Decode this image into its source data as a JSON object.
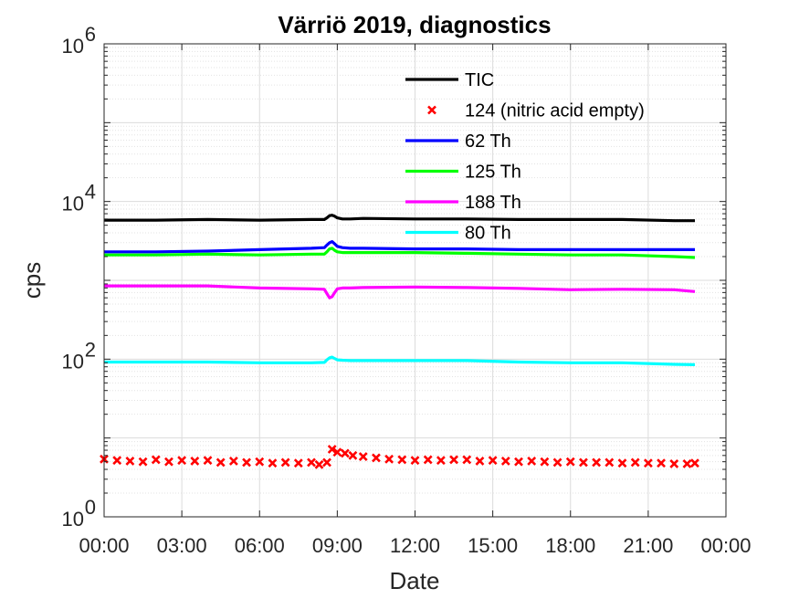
{
  "chart_data": {
    "type": "line",
    "title": "Värriö 2019, diagnostics",
    "xlabel": "Date",
    "ylabel": "cps",
    "yscale": "log",
    "ylim": [
      1,
      1000000
    ],
    "xlim": [
      0,
      24
    ],
    "grid": true,
    "legend_position": "top-right",
    "x_ticks": [
      {
        "value": 0,
        "label": "00:00"
      },
      {
        "value": 3,
        "label": "03:00"
      },
      {
        "value": 6,
        "label": "06:00"
      },
      {
        "value": 9,
        "label": "09:00"
      },
      {
        "value": 12,
        "label": "12:00"
      },
      {
        "value": 15,
        "label": "15:00"
      },
      {
        "value": 18,
        "label": "18:00"
      },
      {
        "value": 21,
        "label": "21:00"
      },
      {
        "value": 24,
        "label": "00:00"
      }
    ],
    "y_ticks": [
      {
        "value": 1,
        "base": "10",
        "exp": "0"
      },
      {
        "value": 100,
        "base": "10",
        "exp": "2"
      },
      {
        "value": 10000,
        "base": "10",
        "exp": "4"
      },
      {
        "value": 1000000,
        "base": "10",
        "exp": "6"
      }
    ],
    "series": [
      {
        "name": "TIC",
        "color": "#000000",
        "style": "line",
        "x": [
          0,
          2,
          4,
          6,
          8,
          8.5,
          8.6,
          8.7,
          8.8,
          8.9,
          9.0,
          9.2,
          9.5,
          10,
          12,
          14,
          16,
          18,
          20,
          22,
          22.8
        ],
        "y": [
          5800,
          5800,
          5900,
          5800,
          5900,
          5900,
          6200,
          6600,
          6700,
          6500,
          6200,
          6000,
          6000,
          6100,
          6000,
          6000,
          5900,
          5900,
          5900,
          5700,
          5700
        ]
      },
      {
        "name": "124 (nitric acid empty)",
        "color": "#ff0000",
        "style": "marker",
        "x": [
          0,
          0.5,
          1,
          1.5,
          2,
          2.5,
          3,
          3.5,
          4,
          4.5,
          5,
          5.5,
          6,
          6.5,
          7,
          7.5,
          8,
          8.3,
          8.6,
          8.8,
          9,
          9.3,
          9.6,
          10,
          10.5,
          11,
          11.5,
          12,
          12.5,
          13,
          13.5,
          14,
          14.5,
          15,
          15.5,
          16,
          16.5,
          17,
          17.5,
          18,
          18.5,
          19,
          19.5,
          20,
          20.5,
          21,
          21.5,
          22,
          22.5,
          22.8
        ],
        "y": [
          5.4,
          5.2,
          5.1,
          5.0,
          5.3,
          5.0,
          5.2,
          5.1,
          5.2,
          4.9,
          5.1,
          4.9,
          5.0,
          4.8,
          4.9,
          4.8,
          4.9,
          4.6,
          4.9,
          7.2,
          6.6,
          6.4,
          6.0,
          5.8,
          5.6,
          5.4,
          5.3,
          5.2,
          5.3,
          5.2,
          5.3,
          5.3,
          5.1,
          5.2,
          5.1,
          5.0,
          5.1,
          5.0,
          4.9,
          5.0,
          4.9,
          4.9,
          4.9,
          4.8,
          4.9,
          4.8,
          4.8,
          4.7,
          4.7,
          4.8
        ]
      },
      {
        "name": "62 Th",
        "color": "#0000ff",
        "style": "line",
        "x": [
          0,
          2,
          4,
          6,
          8,
          8.5,
          8.6,
          8.7,
          8.8,
          8.9,
          9.0,
          9.2,
          9.5,
          10,
          12,
          14,
          16,
          18,
          20,
          22,
          22.8
        ],
        "y": [
          2300,
          2300,
          2350,
          2450,
          2550,
          2600,
          2800,
          3000,
          3100,
          2900,
          2700,
          2600,
          2550,
          2550,
          2500,
          2500,
          2450,
          2450,
          2450,
          2450,
          2450
        ]
      },
      {
        "name": "125 Th",
        "color": "#00ff00",
        "style": "line",
        "x": [
          0,
          2,
          4,
          6,
          8,
          8.5,
          8.6,
          8.7,
          8.8,
          8.9,
          9.0,
          9.2,
          9.5,
          10,
          12,
          14,
          16,
          18,
          20,
          22,
          22.8
        ],
        "y": [
          2100,
          2100,
          2150,
          2100,
          2150,
          2150,
          2300,
          2500,
          2550,
          2400,
          2300,
          2250,
          2250,
          2250,
          2250,
          2200,
          2150,
          2100,
          2100,
          2000,
          1950
        ]
      },
      {
        "name": "188 Th",
        "color": "#ff00ff",
        "style": "line",
        "x": [
          0,
          2,
          4,
          6,
          8,
          8.5,
          8.6,
          8.7,
          8.8,
          8.9,
          9.0,
          9.2,
          9.5,
          10,
          12,
          14,
          16,
          18,
          20,
          22,
          22.8
        ],
        "y": [
          850,
          850,
          850,
          800,
          780,
          770,
          680,
          600,
          620,
          700,
          780,
          800,
          800,
          810,
          820,
          810,
          790,
          760,
          770,
          760,
          720
        ]
      },
      {
        "name": "80 Th",
        "color": "#00ffff",
        "style": "line",
        "x": [
          0,
          2,
          4,
          6,
          8,
          8.5,
          8.6,
          8.7,
          8.8,
          8.9,
          9.0,
          9.2,
          9.5,
          10,
          12,
          14,
          16,
          18,
          20,
          22,
          22.8
        ],
        "y": [
          92,
          92,
          92,
          90,
          90,
          91,
          98,
          104,
          106,
          102,
          98,
          97,
          96,
          96,
          96,
          96,
          92,
          90,
          90,
          86,
          85
        ]
      }
    ]
  }
}
